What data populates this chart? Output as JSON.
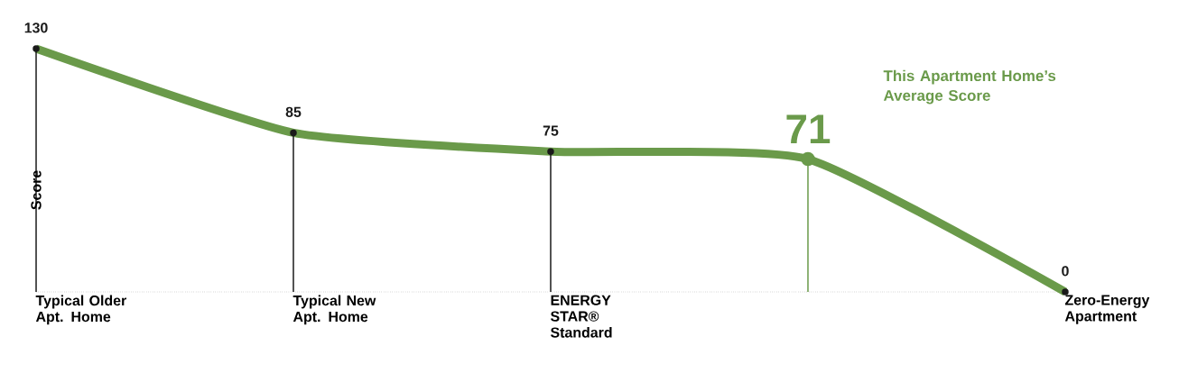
{
  "chart_data": {
    "type": "lollipop",
    "ylabel": "Score",
    "categories": [
      "Typical Older Apt. Home",
      "Typical New Apt. Home",
      "ENERGY STAR® Standard",
      null,
      "Zero-Energy Apartment"
    ],
    "series": [
      {
        "color": "#6a9a4a",
        "colors": [
          "#1a1a1a",
          "#1a1a1a",
          "#1a1a1a",
          "#6a9a4a",
          "#1a1a1a"
        ],
        "values": [
          130,
          85,
          75,
          71,
          0
        ]
      }
    ],
    "data_labels": true,
    "grid": false,
    "annotations": [
      "This Apartment Home’s Average Score"
    ]
  }
}
